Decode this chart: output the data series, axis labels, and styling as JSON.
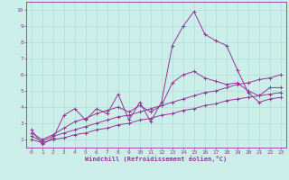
{
  "title": "",
  "xlabel": "Windchill (Refroidissement éolien,°C)",
  "ylabel": "",
  "bg_color": "#cceee8",
  "line_color": "#993399",
  "grid_color": "#aadddd",
  "xlim": [
    -0.5,
    23.5
  ],
  "ylim": [
    1.5,
    10.5
  ],
  "yticks": [
    2,
    3,
    4,
    5,
    6,
    7,
    8,
    9,
    10
  ],
  "xticks": [
    0,
    1,
    2,
    3,
    4,
    5,
    6,
    7,
    8,
    9,
    10,
    11,
    12,
    13,
    14,
    15,
    16,
    17,
    18,
    19,
    20,
    21,
    22,
    23
  ],
  "series": [
    {
      "x": [
        0,
        1,
        2,
        3,
        4,
        5,
        6,
        7,
        8,
        9,
        10,
        11,
        12,
        13,
        14,
        15,
        16,
        17,
        18,
        19,
        20,
        21,
        22,
        23
      ],
      "y": [
        2.6,
        1.7,
        2.1,
        3.5,
        3.9,
        3.2,
        3.9,
        3.6,
        4.8,
        3.2,
        4.3,
        3.1,
        4.3,
        7.8,
        9.0,
        9.9,
        8.5,
        8.1,
        7.8,
        6.3,
        4.9,
        4.3,
        4.5,
        4.6
      ]
    },
    {
      "x": [
        0,
        1,
        2,
        3,
        4,
        5,
        6,
        7,
        8,
        9,
        10,
        11,
        12,
        13,
        14,
        15,
        16,
        17,
        18,
        19,
        20,
        21,
        22,
        23
      ],
      "y": [
        2.0,
        1.8,
        2.0,
        2.1,
        2.3,
        2.4,
        2.6,
        2.7,
        2.9,
        3.0,
        3.2,
        3.3,
        3.5,
        3.6,
        3.8,
        3.9,
        4.1,
        4.2,
        4.4,
        4.5,
        4.6,
        4.7,
        4.8,
        4.9
      ]
    },
    {
      "x": [
        0,
        1,
        2,
        3,
        4,
        5,
        6,
        7,
        8,
        9,
        10,
        11,
        12,
        13,
        14,
        15,
        16,
        17,
        18,
        19,
        20,
        21,
        22,
        23
      ],
      "y": [
        2.2,
        1.9,
        2.2,
        2.4,
        2.6,
        2.8,
        3.0,
        3.2,
        3.4,
        3.5,
        3.7,
        3.9,
        4.1,
        4.3,
        4.5,
        4.7,
        4.9,
        5.0,
        5.2,
        5.4,
        5.5,
        5.7,
        5.8,
        6.0
      ]
    },
    {
      "x": [
        0,
        1,
        2,
        3,
        4,
        5,
        6,
        7,
        8,
        9,
        10,
        11,
        12,
        13,
        14,
        15,
        16,
        17,
        18,
        19,
        20,
        21,
        22,
        23
      ],
      "y": [
        2.4,
        2.0,
        2.3,
        2.7,
        3.1,
        3.3,
        3.6,
        3.8,
        4.0,
        3.7,
        4.1,
        3.7,
        4.1,
        5.5,
        6.0,
        6.2,
        5.8,
        5.6,
        5.4,
        5.5,
        5.0,
        4.7,
        5.2,
        5.2
      ]
    }
  ]
}
